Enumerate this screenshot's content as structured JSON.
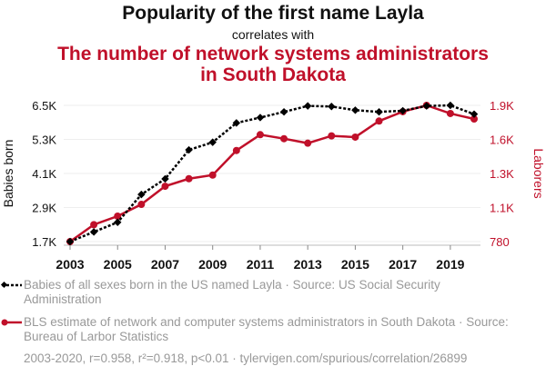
{
  "title": "Popularity of the first name Layla",
  "subtitle": "correlates with",
  "title2_line1": "The number of network systems administrators",
  "title2_line2": "in South Dakota",
  "chart_data": {
    "type": "line",
    "x": [
      2003,
      2004,
      2005,
      2006,
      2007,
      2008,
      2009,
      2010,
      2011,
      2012,
      2013,
      2014,
      2015,
      2016,
      2017,
      2018,
      2019,
      2020
    ],
    "series": [
      {
        "name": "Babies of all sexes born in the US named Layla · Source: US Social Security Administration",
        "axis": "left",
        "color": "#000000",
        "values": [
          1700,
          2040,
          2380,
          3360,
          3910,
          4930,
          5200,
          5880,
          6070,
          6270,
          6480,
          6460,
          6330,
          6270,
          6310,
          6480,
          6500,
          6190
        ]
      },
      {
        "name": "BLS estimate of network and computer systems administrators in South Dakota · Source: Bureau of Larbor Statistics",
        "axis": "right",
        "color": "#c0102a",
        "values": [
          780,
          919,
          989,
          1086,
          1235,
          1297,
          1327,
          1529,
          1659,
          1626,
          1589,
          1649,
          1639,
          1771,
          1848,
          1900,
          1833,
          1788
        ]
      }
    ],
    "ylabel": "Babies born",
    "y2label": "Laborers",
    "ylim": [
      1700,
      6500
    ],
    "y2lim": [
      780,
      1900
    ],
    "yticks": [
      "1.7K",
      "2.9K",
      "4.1K",
      "5.3K",
      "6.5K"
    ],
    "y2ticks": [
      "780",
      "1.1K",
      "1.3K",
      "1.6K",
      "1.9K"
    ],
    "xticks": [
      "2003",
      "2005",
      "2007",
      "2009",
      "2011",
      "2013",
      "2015",
      "2017",
      "2019"
    ]
  },
  "legend": {
    "line1": "Babies of all sexes born in the US named Layla · Source: US Social Security Administration",
    "line2": "BLS estimate of network and computer systems administrators in South Dakota · Source: Bureau of Larbor Statistics"
  },
  "footer": "2003-2020, r=0.958, r²=0.918, p<0.01 · tylervigen.com/spurious/correlation/26899"
}
